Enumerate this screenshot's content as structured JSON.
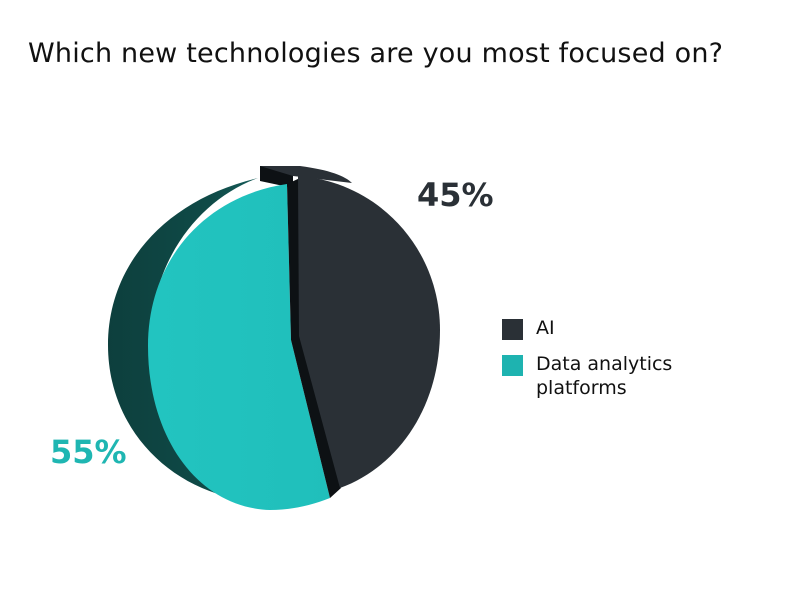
{
  "title": "Which new technologies are you most focused on?",
  "colors": {
    "ai": "#2a3036",
    "ai_edge": "#0d1114",
    "data_analytics": "#20bfbb",
    "data_analytics_dark": "#0f4a47",
    "label_ai": "#2a3036",
    "label_data": "#1fb6b2"
  },
  "chart_data": {
    "type": "pie",
    "title": "Which new technologies are you most focused on?",
    "categories": [
      "AI",
      "Data analytics platforms"
    ],
    "values": [
      45,
      55
    ],
    "labels": [
      "45%",
      "55%"
    ],
    "legend": "right"
  },
  "legend": {
    "items": [
      {
        "label": "AI",
        "color": "#2a3036"
      },
      {
        "label": "Data analytics platforms",
        "color": "#1eb3b0"
      }
    ]
  }
}
